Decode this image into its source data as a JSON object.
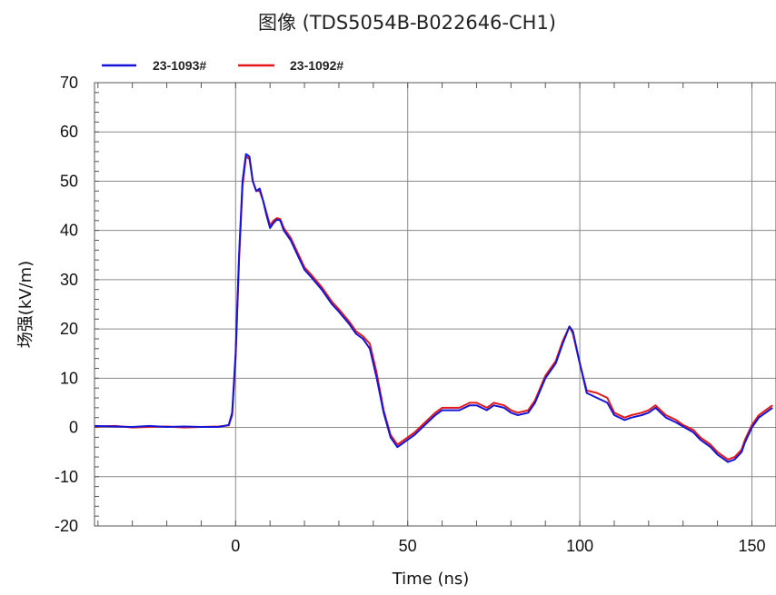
{
  "chart_data": {
    "type": "line",
    "title": "图像 (TDS5054B-B022646-CH1)",
    "xlabel": "Time (ns)",
    "ylabel": "场强(kV/m)",
    "xlim": [
      -41,
      157
    ],
    "ylim": [
      -20,
      70
    ],
    "xticks": [
      0,
      50,
      100,
      150
    ],
    "yticks": [
      -20,
      -10,
      0,
      10,
      20,
      30,
      40,
      50,
      60,
      70
    ],
    "grid": true,
    "legend": "top-left",
    "series": [
      {
        "name": "23-1093#",
        "color": "#1515d8",
        "points": [
          [
            -41,
            0.3
          ],
          [
            -35,
            0.2
          ],
          [
            -30,
            0.1
          ],
          [
            -25,
            0.3
          ],
          [
            -20,
            0.1
          ],
          [
            -15,
            0.2
          ],
          [
            -10,
            0.1
          ],
          [
            -5,
            0.1
          ],
          [
            -2,
            0.5
          ],
          [
            -1,
            3
          ],
          [
            0,
            15
          ],
          [
            1,
            35
          ],
          [
            2,
            50
          ],
          [
            3,
            55.5
          ],
          [
            4,
            55
          ],
          [
            5,
            50
          ],
          [
            6,
            48
          ],
          [
            7,
            48.5
          ],
          [
            8,
            46
          ],
          [
            9,
            43
          ],
          [
            10,
            40.5
          ],
          [
            11,
            41.5
          ],
          [
            12,
            42.2
          ],
          [
            13,
            42
          ],
          [
            14,
            40
          ],
          [
            16,
            38
          ],
          [
            18,
            35
          ],
          [
            20,
            32
          ],
          [
            22,
            30.5
          ],
          [
            25,
            28
          ],
          [
            28,
            25
          ],
          [
            30,
            23.5
          ],
          [
            33,
            21
          ],
          [
            35,
            19
          ],
          [
            37,
            18
          ],
          [
            39,
            16
          ],
          [
            41,
            10
          ],
          [
            43,
            3
          ],
          [
            45,
            -2
          ],
          [
            47,
            -4
          ],
          [
            48,
            -3.5
          ],
          [
            50,
            -2.5
          ],
          [
            52,
            -1.5
          ],
          [
            55,
            0.5
          ],
          [
            58,
            2.5
          ],
          [
            60,
            3.5
          ],
          [
            63,
            3.5
          ],
          [
            65,
            3.5
          ],
          [
            68,
            4.5
          ],
          [
            70,
            4.5
          ],
          [
            73,
            3.5
          ],
          [
            75,
            4.5
          ],
          [
            78,
            4
          ],
          [
            80,
            3
          ],
          [
            82,
            2.5
          ],
          [
            85,
            3
          ],
          [
            87,
            5
          ],
          [
            90,
            10
          ],
          [
            93,
            13
          ],
          [
            95,
            17
          ],
          [
            97,
            20.5
          ],
          [
            98,
            19.5
          ],
          [
            100,
            13
          ],
          [
            102,
            7
          ],
          [
            105,
            6
          ],
          [
            108,
            5
          ],
          [
            110,
            2.5
          ],
          [
            113,
            1.5
          ],
          [
            115,
            2
          ],
          [
            118,
            2.5
          ],
          [
            120,
            3
          ],
          [
            122,
            4
          ],
          [
            125,
            2
          ],
          [
            128,
            1
          ],
          [
            130,
            0.2
          ],
          [
            133,
            -1
          ],
          [
            135,
            -2.5
          ],
          [
            138,
            -4
          ],
          [
            140,
            -5.5
          ],
          [
            143,
            -7
          ],
          [
            145,
            -6.5
          ],
          [
            147,
            -5
          ],
          [
            148,
            -3
          ],
          [
            150,
            0
          ],
          [
            152,
            2
          ],
          [
            154,
            3
          ],
          [
            156,
            4
          ]
        ]
      },
      {
        "name": "23-1092#",
        "color": "#e41a1a",
        "points": [
          [
            -41,
            0.2
          ],
          [
            -35,
            0.3
          ],
          [
            -30,
            0
          ],
          [
            -25,
            0.1
          ],
          [
            -20,
            0.2
          ],
          [
            -15,
            0
          ],
          [
            -10,
            0.1
          ],
          [
            -5,
            0.2
          ],
          [
            -2,
            0.4
          ],
          [
            -1,
            2.5
          ],
          [
            0,
            14
          ],
          [
            1,
            34
          ],
          [
            2,
            49
          ],
          [
            3,
            55
          ],
          [
            4,
            54.5
          ],
          [
            5,
            50
          ],
          [
            6,
            48
          ],
          [
            7,
            48
          ],
          [
            8,
            46
          ],
          [
            9,
            43.5
          ],
          [
            10,
            41
          ],
          [
            11,
            42
          ],
          [
            12,
            42.5
          ],
          [
            13,
            42.3
          ],
          [
            14,
            40.5
          ],
          [
            16,
            38.5
          ],
          [
            18,
            35.5
          ],
          [
            20,
            32.5
          ],
          [
            22,
            31
          ],
          [
            25,
            28.5
          ],
          [
            28,
            25.5
          ],
          [
            30,
            24
          ],
          [
            33,
            21.5
          ],
          [
            35,
            19.5
          ],
          [
            37,
            18.5
          ],
          [
            39,
            17
          ],
          [
            41,
            11
          ],
          [
            43,
            3.5
          ],
          [
            45,
            -1.5
          ],
          [
            47,
            -3.5
          ],
          [
            48,
            -3
          ],
          [
            50,
            -2
          ],
          [
            52,
            -1
          ],
          [
            55,
            1
          ],
          [
            58,
            3
          ],
          [
            60,
            4
          ],
          [
            63,
            4
          ],
          [
            65,
            4
          ],
          [
            68,
            5
          ],
          [
            70,
            5
          ],
          [
            73,
            4
          ],
          [
            75,
            5
          ],
          [
            78,
            4.5
          ],
          [
            80,
            3.5
          ],
          [
            82,
            3
          ],
          [
            85,
            3.5
          ],
          [
            87,
            5.5
          ],
          [
            90,
            10.5
          ],
          [
            93,
            13.5
          ],
          [
            95,
            17.5
          ],
          [
            97,
            20.5
          ],
          [
            98,
            19
          ],
          [
            100,
            13
          ],
          [
            102,
            7.5
          ],
          [
            105,
            7
          ],
          [
            108,
            6
          ],
          [
            110,
            3
          ],
          [
            113,
            2
          ],
          [
            115,
            2.5
          ],
          [
            118,
            3
          ],
          [
            120,
            3.5
          ],
          [
            122,
            4.5
          ],
          [
            125,
            2.5
          ],
          [
            128,
            1.5
          ],
          [
            130,
            0.5
          ],
          [
            133,
            -0.5
          ],
          [
            135,
            -2
          ],
          [
            138,
            -3.5
          ],
          [
            140,
            -5
          ],
          [
            143,
            -6.5
          ],
          [
            145,
            -6
          ],
          [
            147,
            -4.5
          ],
          [
            148,
            -2.5
          ],
          [
            150,
            0.5
          ],
          [
            152,
            2.5
          ],
          [
            154,
            3.5
          ],
          [
            156,
            4.5
          ]
        ]
      }
    ]
  }
}
